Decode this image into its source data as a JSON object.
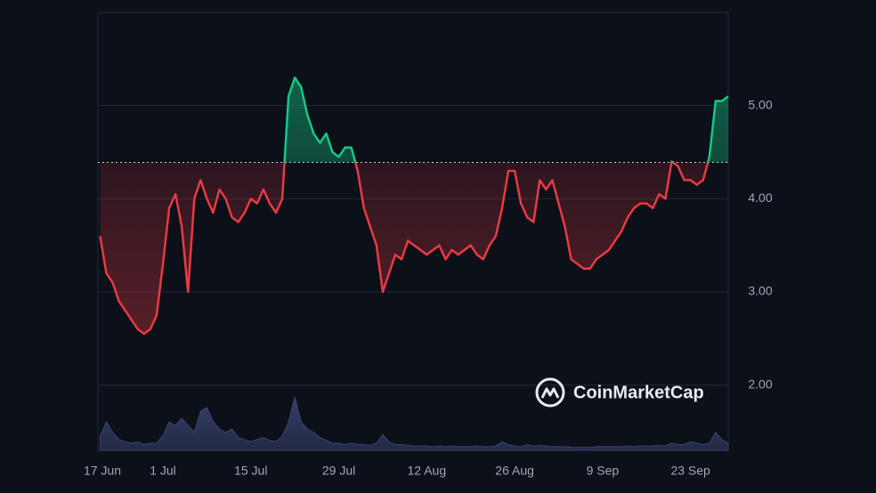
{
  "chart_data": {
    "type": "baseline-area",
    "categories": [
      "17 Jun",
      null,
      null,
      null,
      null,
      null,
      null,
      null,
      null,
      null,
      null,
      null,
      null,
      null,
      "1 Jul",
      null,
      null,
      null,
      null,
      null,
      null,
      null,
      null,
      null,
      null,
      null,
      null,
      null,
      "15 Jul",
      null,
      null,
      null,
      null,
      null,
      null,
      null,
      null,
      null,
      null,
      null,
      null,
      null,
      "29 Jul",
      null,
      null,
      null,
      null,
      null,
      null,
      null,
      null,
      null,
      null,
      null,
      null,
      null,
      "12 Aug",
      null,
      null,
      null,
      null,
      null,
      null,
      null,
      null,
      null,
      null,
      null,
      null,
      null,
      "26 Aug",
      null,
      null,
      null,
      null,
      null,
      null,
      null,
      null,
      null,
      null,
      null,
      null,
      null,
      "9 Sep",
      null,
      null,
      null,
      null,
      null,
      null,
      null,
      null,
      null,
      null,
      null,
      null,
      null,
      "23 Sep",
      null,
      null,
      null,
      null,
      null,
      null
    ],
    "series": [
      {
        "name": "Price",
        "values": [
          null,
          null,
          null,
          null,
          3.6,
          3.2,
          3.1,
          2.9,
          2.8,
          2.7,
          2.6,
          2.55,
          2.6,
          2.75,
          3.3,
          3.9,
          4.05,
          3.7,
          3.0,
          4.0,
          4.2,
          4.0,
          3.85,
          4.1,
          4.0,
          3.8,
          3.75,
          3.85,
          4.0,
          3.95,
          4.1,
          3.95,
          3.85,
          4.0,
          5.1,
          5.3,
          5.2,
          4.9,
          4.7,
          4.6,
          4.7,
          4.5,
          4.45,
          4.55,
          4.55,
          4.3,
          3.9,
          3.7,
          3.5,
          3.0,
          3.2,
          3.4,
          3.35,
          3.55,
          3.5,
          3.45,
          3.4,
          3.45,
          3.5,
          3.35,
          3.45,
          3.4,
          3.45,
          3.5,
          3.4,
          3.35,
          3.5,
          3.6,
          3.9,
          4.3,
          4.3,
          3.95,
          3.8,
          3.75,
          4.2,
          4.1,
          4.2,
          3.95,
          3.7,
          3.35,
          3.3,
          3.25,
          3.25,
          3.35,
          3.4,
          3.45,
          3.55,
          3.65,
          3.8,
          3.9,
          3.95,
          3.95,
          3.9,
          4.05,
          4.0,
          4.4,
          4.35,
          4.2,
          4.2,
          4.15,
          4.2,
          4.45,
          5.05,
          5.05,
          5.1
        ]
      },
      {
        "name": "Volume",
        "axis": "y2",
        "color": "#3a4470",
        "values": [
          null,
          null,
          null,
          null,
          20,
          40,
          25,
          15,
          12,
          10,
          12,
          8,
          10,
          10,
          20,
          40,
          35,
          45,
          35,
          25,
          55,
          60,
          40,
          30,
          25,
          30,
          18,
          15,
          12,
          15,
          18,
          14,
          12,
          20,
          40,
          75,
          40,
          30,
          25,
          18,
          14,
          10,
          10,
          8,
          10,
          8,
          8,
          7,
          10,
          22,
          12,
          8,
          8,
          7,
          6,
          6,
          6,
          5,
          6,
          5,
          6,
          5,
          5,
          5,
          6,
          5,
          5,
          6,
          12,
          8,
          6,
          5,
          8,
          6,
          7,
          6,
          5,
          5,
          5,
          4,
          4,
          4,
          4,
          5,
          5,
          5,
          5,
          5,
          6,
          5,
          6,
          6,
          6,
          7,
          6,
          10,
          8,
          8,
          12,
          10,
          8,
          10,
          25,
          15,
          10
        ]
      }
    ],
    "baseline": 4.39,
    "up_color": "#16c784",
    "down_color": "#ea3943",
    "ylim": [
      1.3,
      6.0
    ],
    "yticks": [
      {
        "value": 2,
        "label": "2.00"
      },
      {
        "value": 3,
        "label": "3.00"
      },
      {
        "value": 4,
        "label": "4.00"
      },
      {
        "value": 5,
        "label": "5.00"
      }
    ],
    "y2lim": [
      0,
      100
    ],
    "grid": true,
    "watermark": "CoinMarketCap"
  }
}
